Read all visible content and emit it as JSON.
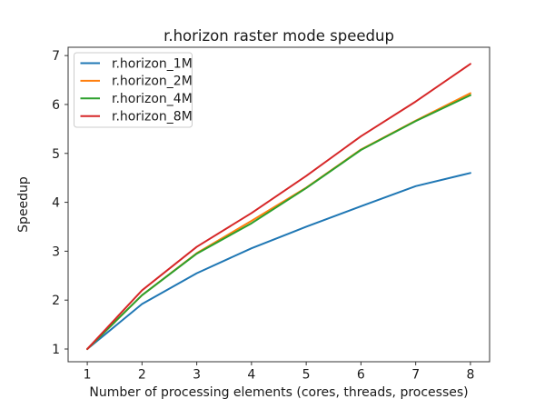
{
  "figure": {
    "background": "#ffffff"
  },
  "chart_data": {
    "type": "line",
    "title": "r.horizon raster mode speedup",
    "xlabel": "Number of processing elements (cores, threads, processes)",
    "ylabel": "Speedup",
    "x": [
      1,
      2,
      3,
      4,
      5,
      6,
      7,
      8
    ],
    "xticks": [
      1,
      2,
      3,
      4,
      5,
      6,
      7,
      8
    ],
    "yticks": [
      1,
      2,
      3,
      4,
      5,
      6,
      7
    ],
    "xlim": [
      0.65,
      8.35
    ],
    "ylim": [
      0.74,
      7.17
    ],
    "grid": false,
    "legend_position": "upper left",
    "series": [
      {
        "name": "r.horizon_1M",
        "color": "#1f77b4",
        "values": [
          1.0,
          1.92,
          2.55,
          3.06,
          3.5,
          3.92,
          4.33,
          4.6
        ]
      },
      {
        "name": "r.horizon_2M",
        "color": "#ff7f0e",
        "values": [
          1.0,
          2.1,
          2.96,
          3.62,
          4.3,
          5.08,
          5.67,
          6.23
        ]
      },
      {
        "name": "r.horizon_4M",
        "color": "#2ca02c",
        "values": [
          1.0,
          2.1,
          2.95,
          3.57,
          4.29,
          5.07,
          5.66,
          6.19
        ]
      },
      {
        "name": "r.horizon_8M",
        "color": "#d62728",
        "values": [
          1.0,
          2.2,
          3.09,
          3.78,
          4.54,
          5.35,
          6.06,
          6.83
        ]
      }
    ],
    "axis_color": "#333333",
    "text_color": "#1a1a1a",
    "legend_border_color": "#cccccc",
    "line_width": 2
  }
}
